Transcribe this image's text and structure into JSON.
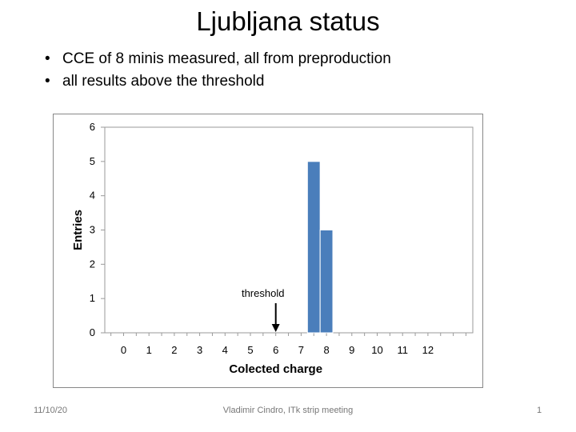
{
  "slide": {
    "title": "Ljubljana status",
    "bullets": [
      "CCE of  8 minis measured, all from preproduction",
      "all results above the threshold"
    ]
  },
  "footer": {
    "date": "11/10/20",
    "center": "Vladimir Cindro, ITk strip meeting",
    "page": "1"
  },
  "chart_data": {
    "type": "bar",
    "title": "",
    "xlabel": "Colected charge",
    "ylabel": "Entries",
    "x_ticks": [
      0,
      1,
      2,
      3,
      4,
      5,
      6,
      7,
      8,
      9,
      10,
      11,
      12
    ],
    "y_ticks": [
      0,
      1,
      2,
      3,
      4,
      5,
      6
    ],
    "ylim": [
      0,
      6
    ],
    "bars": [
      {
        "x": 7.5,
        "value": 5
      },
      {
        "x": 8.0,
        "value": 3
      }
    ],
    "bar_width": 0.5,
    "bar_color": "#4a7ebb",
    "grid": false,
    "legend": "none",
    "annotations": [
      {
        "text": "threshold",
        "x": 6,
        "arrow": "down"
      }
    ]
  }
}
